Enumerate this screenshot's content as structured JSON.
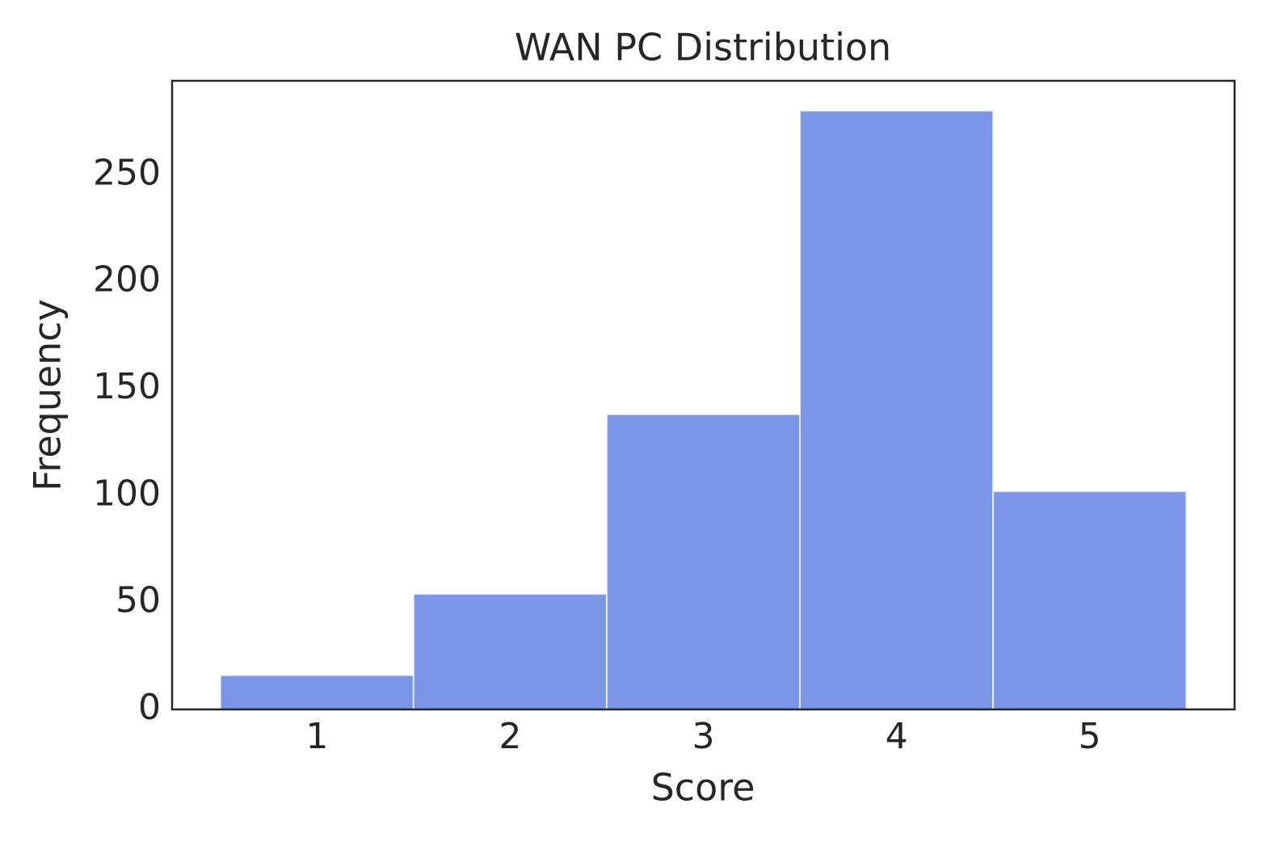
{
  "chart_data": {
    "type": "histogram",
    "title": "WAN PC Distribution",
    "x_label": "Score",
    "y_label": "Frequency",
    "bins": [
      0.5,
      1.5,
      2.5,
      3.5,
      4.5,
      5.5
    ],
    "values": [
      16,
      54,
      138,
      280,
      102
    ],
    "color": "#7b96e8",
    "xlim": [
      0.25,
      5.75
    ],
    "xticks": [
      1,
      2,
      3,
      4,
      5
    ],
    "ylim": [
      0,
      294
    ],
    "yticks": [
      0,
      50,
      100,
      150,
      200,
      250
    ],
    "grid": false
  }
}
